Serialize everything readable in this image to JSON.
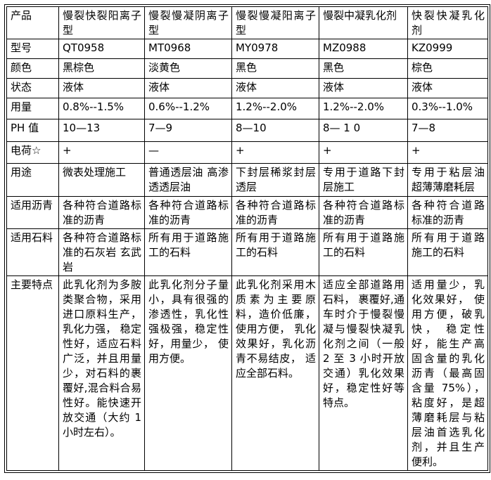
{
  "page": {
    "background_color": "#ffffff",
    "border_color": "#000000",
    "text_color": "#000000"
  },
  "table": {
    "rows": [
      [
        "产品",
        "慢裂快裂阳离子型",
        "慢裂慢凝阴离子型",
        "慢裂慢凝阳离子型",
        "慢裂中凝乳化剂",
        "快裂快凝乳化剂"
      ],
      [
        "型号",
        "QT0958",
        "MT0968",
        "MY0978",
        "MZ0988",
        "KZ0999"
      ],
      [
        "颜色",
        "黑棕色",
        "淡黄色",
        "黑色",
        "黑色",
        "棕色"
      ],
      [
        "状态",
        "液体",
        "液体",
        "液体",
        "液体",
        "液体"
      ],
      [
        "用量",
        "0.8%--1.5%",
        "0.6%--1.2%",
        "1.2%--2.0%",
        "1.2%--2.0%",
        "0.3%--1.0%"
      ],
      [
        "PH 值",
        "10—13",
        "7—9",
        "8—10",
        "8— 1 0",
        "7—8"
      ],
      [
        "电荷☆",
        "+",
        "—",
        "+",
        "+",
        "+"
      ],
      [
        "用途",
        "微表处理施工",
        "普通透层油 高渗透透层油",
        "下封层稀浆封层透层",
        "专用于道路下封层施工",
        "专用于粘层油 超薄薄磨耗层"
      ],
      [
        "适用沥青",
        "各种符合道路标准的沥青",
        "各种符合道路标准的沥青",
        "各种符合道路标准的沥青",
        "各种符合道路标准的沥青",
        "各种符合道路标准的沥青"
      ],
      [
        "适用石料",
        "各种符合道路标准的石灰岩 玄武岩",
        "所有用于道路施工的石料",
        "所有用于道路施工的石料",
        "所有用于道路施工的石料",
        "所有用于道路施工的石料"
      ],
      [
        "主要特点",
        "此乳化剂为多胺类聚合物，采用进口原料生产，乳化力强， 稳定性好，适应石料广泛，并且用量少，对石料的裹覆好,混合料合易性好。能快速开放交通（大约 1 小时左右）。",
        "此乳化剂分子量小，具有很强的渗透性，乳化性强极强，稳定性好，用量少， 使用方便。",
        "此乳化剂采用木质素为主要原料，造价低廉，使用方便， 乳化效果好，乳化沥青不易结皮， 适应全部石料。",
        "适应全部道路用石料， 裹覆好,通车时介于慢裂慢凝与慢裂快凝乳化剂之间（一般 2 至 3 小时开放交通）乳化效果好，稳定性好等特点。",
        "适用量少，乳化效果好， 使用方便，破乳快， 稳定性好，能生产高固含量的乳化沥青（最高固含量 75%），粘度好，是超薄磨耗层与粘层油首选乳化剂，并且生产便利。"
      ]
    ]
  }
}
